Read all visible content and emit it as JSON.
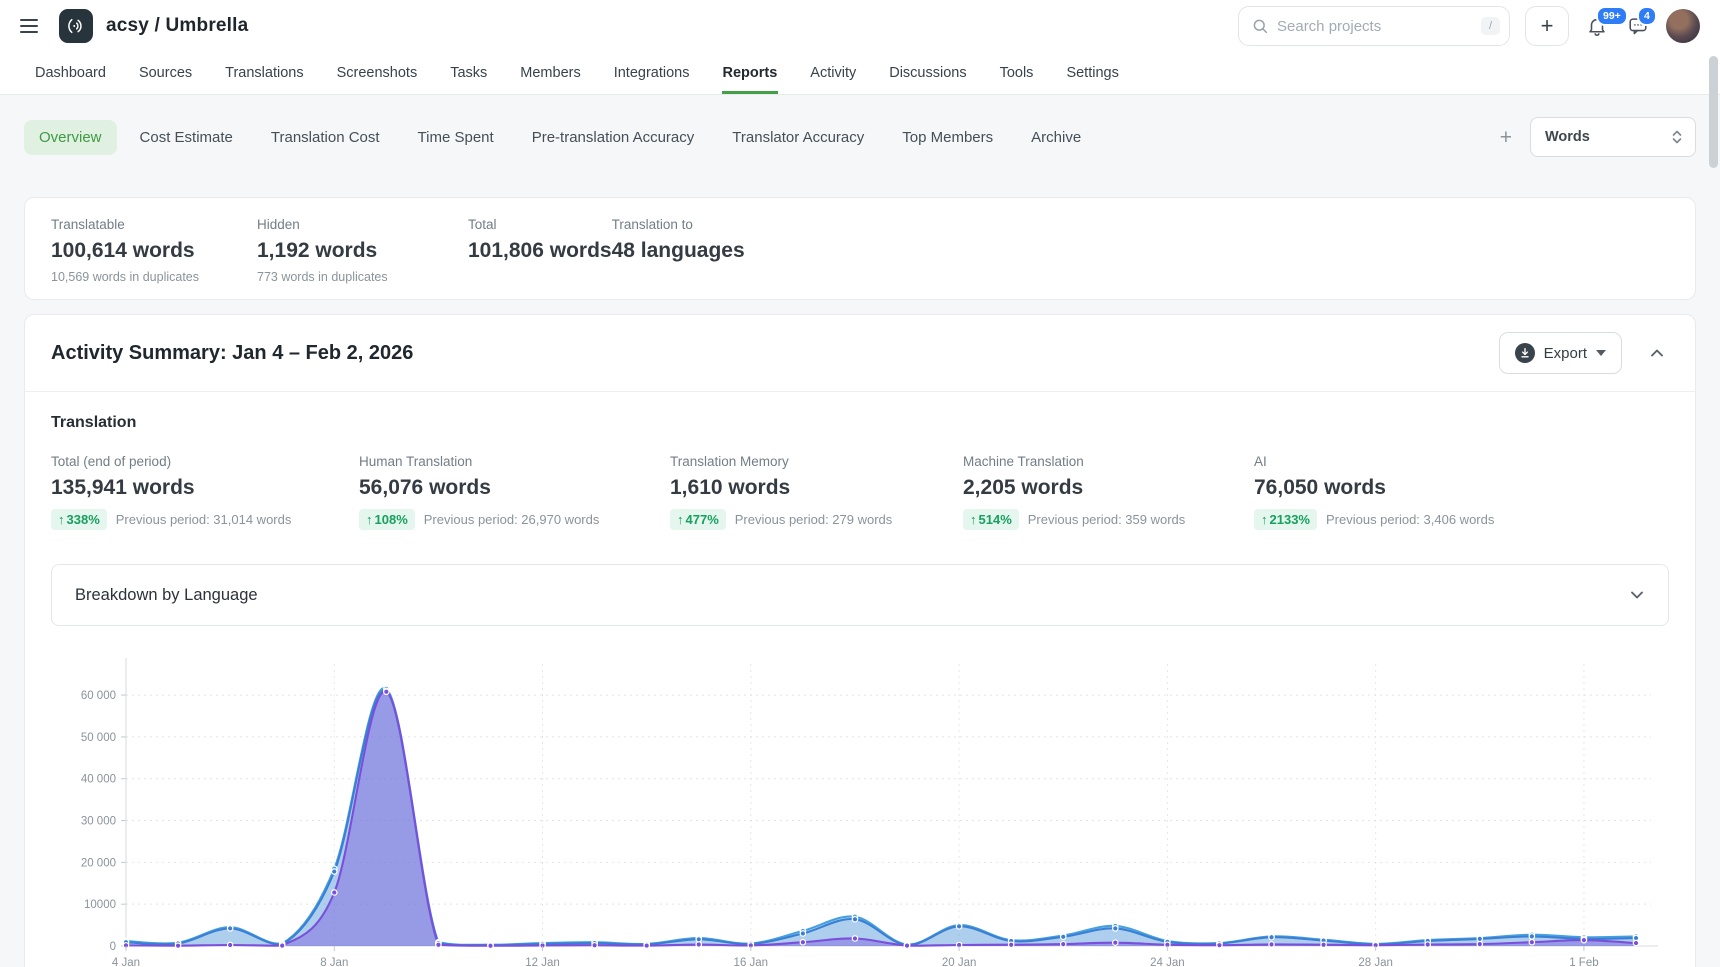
{
  "header": {
    "title": "acsy / Umbrella",
    "search_placeholder": "Search projects",
    "search_shortcut": "/",
    "add_button": "+",
    "notifications_badge": "99+",
    "messages_badge": "4"
  },
  "nav": {
    "items": [
      {
        "label": "Dashboard"
      },
      {
        "label": "Sources"
      },
      {
        "label": "Translations"
      },
      {
        "label": "Screenshots"
      },
      {
        "label": "Tasks"
      },
      {
        "label": "Members"
      },
      {
        "label": "Integrations"
      },
      {
        "label": "Reports",
        "active": true
      },
      {
        "label": "Activity"
      },
      {
        "label": "Discussions"
      },
      {
        "label": "Tools"
      },
      {
        "label": "Settings"
      }
    ]
  },
  "report_tabs": {
    "tabs": [
      {
        "label": "Overview",
        "active": true
      },
      {
        "label": "Cost Estimate"
      },
      {
        "label": "Translation Cost"
      },
      {
        "label": "Time Spent"
      },
      {
        "label": "Pre-translation Accuracy"
      },
      {
        "label": "Translator Accuracy"
      },
      {
        "label": "Top Members"
      },
      {
        "label": "Archive"
      }
    ],
    "add_label": "+",
    "unit_select_value": "Words"
  },
  "summary_stats": [
    {
      "label": "Translatable",
      "value": "100,614 words",
      "note": "10,569 words in duplicates"
    },
    {
      "label": "Hidden",
      "value": "1,192 words",
      "note": "773 words in duplicates"
    },
    {
      "label": "Total",
      "value": "101,806 words",
      "note": ""
    },
    {
      "label": "Translation to",
      "value": "48 languages",
      "note": ""
    }
  ],
  "activity_summary": {
    "title": "Activity Summary: Jan 4 – Feb 2, 2026",
    "export_label": "Export",
    "section_title": "Translation",
    "metrics": [
      {
        "label": "Total (end of period)",
        "value": "135,941 words",
        "change": "338%",
        "prev": "Previous period: 31,014 words"
      },
      {
        "label": "Human Translation",
        "value": "56,076 words",
        "change": "108%",
        "prev": "Previous period: 26,970 words"
      },
      {
        "label": "Translation Memory",
        "value": "1,610 words",
        "change": "477%",
        "prev": "Previous period: 279 words"
      },
      {
        "label": "Machine Translation",
        "value": "2,205 words",
        "change": "514%",
        "prev": "Previous period: 359 words"
      },
      {
        "label": "AI",
        "value": "76,050 words",
        "change": "2133%",
        "prev": "Previous period: 3,406 words"
      }
    ],
    "breakdown_label": "Breakdown by Language"
  },
  "chart_data": {
    "type": "area",
    "title": "Translation activity Jan 4 – Feb 2, 2026 (words per day)",
    "xlabel": "",
    "ylabel": "",
    "ylim": [
      0,
      66000
    ],
    "grid": true,
    "legend": "none",
    "x_tick_labels": [
      {
        "index": 0,
        "label": "4 Jan"
      },
      {
        "index": 4,
        "label": "8 Jan"
      },
      {
        "index": 8,
        "label": "12 Jan"
      },
      {
        "index": 12,
        "label": "16 Jan"
      },
      {
        "index": 16,
        "label": "20 Jan"
      },
      {
        "index": 20,
        "label": "24 Jan"
      },
      {
        "index": 24,
        "label": "28 Jan"
      },
      {
        "index": 28,
        "label": "1 Feb"
      }
    ],
    "y_tick_labels": [
      {
        "value": 0,
        "label": "0"
      },
      {
        "value": 10000,
        "label": "10000"
      },
      {
        "value": 20000,
        "label": "20 000"
      },
      {
        "value": 30000,
        "label": "30 000"
      },
      {
        "value": 40000,
        "label": "40 000"
      },
      {
        "value": 50000,
        "label": "50 000"
      },
      {
        "value": 60000,
        "label": "60 000"
      }
    ],
    "series": [
      {
        "name": "light-blue-series",
        "color": "#45a0e0",
        "fill": "rgba(90,168,228,0.35)",
        "values": [
          1200,
          800,
          4500,
          600,
          18500,
          61500,
          900,
          300,
          700,
          900,
          500,
          1900,
          600,
          3600,
          7000,
          350,
          5000,
          1400,
          2500,
          4800,
          1200,
          700,
          2300,
          1500,
          500,
          1400,
          1900,
          2700,
          2100,
          2300
        ]
      },
      {
        "name": "blue-series",
        "color": "#3b7fd4",
        "fill": "rgba(64,120,200,0.18)",
        "values": [
          900,
          600,
          4200,
          400,
          17800,
          61000,
          700,
          200,
          500,
          700,
          400,
          1600,
          500,
          3000,
          6400,
          250,
          4700,
          1200,
          2200,
          4200,
          1000,
          600,
          2100,
          1300,
          400,
          1200,
          1700,
          2300,
          1700,
          1900
        ]
      },
      {
        "name": "purple-series",
        "color": "#7a4fdb",
        "fill": "rgba(124,92,220,0.45)",
        "values": [
          150,
          80,
          250,
          100,
          12800,
          60800,
          300,
          60,
          120,
          180,
          100,
          350,
          150,
          900,
          1800,
          100,
          250,
          300,
          450,
          800,
          300,
          200,
          380,
          300,
          200,
          350,
          450,
          900,
          1400,
          700
        ]
      }
    ]
  },
  "colors": {
    "accent_green": "#43a047",
    "active_tab_bg": "#e1f1e1",
    "active_tab_text": "#3e9a44",
    "badge_green_bg": "#e5f6ee",
    "badge_green_text": "#17a05e",
    "notification_blue": "#2f7df6"
  }
}
